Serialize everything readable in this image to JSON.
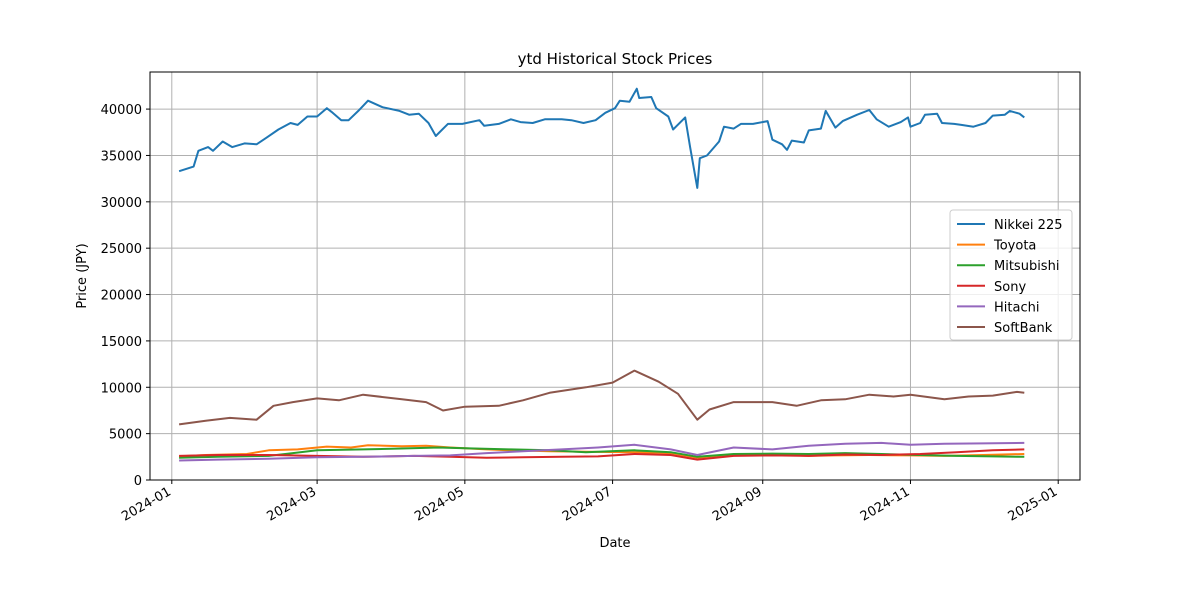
{
  "chart_data": {
    "type": "line",
    "title": "ytd Historical Stock Prices",
    "xlabel": "Date",
    "ylabel": "Price (JPY)",
    "xlim": [
      "2023-12-23",
      "2025-01-10"
    ],
    "ylim": [
      0,
      44000
    ],
    "x_ticks": [
      "2024-01",
      "2024-03",
      "2024-05",
      "2024-07",
      "2024-09",
      "2024-11",
      "2025-01"
    ],
    "y_ticks": [
      0,
      5000,
      10000,
      15000,
      20000,
      25000,
      30000,
      35000,
      40000
    ],
    "grid": true,
    "legend_position": "center-right",
    "series": [
      {
        "name": "Nikkei 225",
        "color": "#1f77b4",
        "points": [
          [
            "2024-01-04",
            33300
          ],
          [
            "2024-01-10",
            33800
          ],
          [
            "2024-01-12",
            35500
          ],
          [
            "2024-01-16",
            35900
          ],
          [
            "2024-01-18",
            35500
          ],
          [
            "2024-01-22",
            36500
          ],
          [
            "2024-01-26",
            35900
          ],
          [
            "2024-01-31",
            36300
          ],
          [
            "2024-02-05",
            36200
          ],
          [
            "2024-02-09",
            36900
          ],
          [
            "2024-02-14",
            37800
          ],
          [
            "2024-02-19",
            38500
          ],
          [
            "2024-02-22",
            38300
          ],
          [
            "2024-02-26",
            39200
          ],
          [
            "2024-03-01",
            39200
          ],
          [
            "2024-03-05",
            40100
          ],
          [
            "2024-03-07",
            39700
          ],
          [
            "2024-03-11",
            38800
          ],
          [
            "2024-03-14",
            38800
          ],
          [
            "2024-03-18",
            39800
          ],
          [
            "2024-03-22",
            40900
          ],
          [
            "2024-03-28",
            40200
          ],
          [
            "2024-04-04",
            39800
          ],
          [
            "2024-04-08",
            39400
          ],
          [
            "2024-04-12",
            39500
          ],
          [
            "2024-04-16",
            38500
          ],
          [
            "2024-04-19",
            37100
          ],
          [
            "2024-04-24",
            38400
          ],
          [
            "2024-04-30",
            38400
          ],
          [
            "2024-05-07",
            38800
          ],
          [
            "2024-05-09",
            38200
          ],
          [
            "2024-05-15",
            38400
          ],
          [
            "2024-05-20",
            38900
          ],
          [
            "2024-05-24",
            38600
          ],
          [
            "2024-05-29",
            38500
          ],
          [
            "2024-06-03",
            38900
          ],
          [
            "2024-06-10",
            38900
          ],
          [
            "2024-06-14",
            38800
          ],
          [
            "2024-06-19",
            38500
          ],
          [
            "2024-06-24",
            38800
          ],
          [
            "2024-06-28",
            39600
          ],
          [
            "2024-07-02",
            40100
          ],
          [
            "2024-07-04",
            40900
          ],
          [
            "2024-07-08",
            40800
          ],
          [
            "2024-07-11",
            42200
          ],
          [
            "2024-07-12",
            41200
          ],
          [
            "2024-07-17",
            41300
          ],
          [
            "2024-07-19",
            40100
          ],
          [
            "2024-07-24",
            39200
          ],
          [
            "2024-07-26",
            37800
          ],
          [
            "2024-07-31",
            39100
          ],
          [
            "2024-08-02",
            35900
          ],
          [
            "2024-08-05",
            31500
          ],
          [
            "2024-08-06",
            34700
          ],
          [
            "2024-08-09",
            35000
          ],
          [
            "2024-08-14",
            36500
          ],
          [
            "2024-08-16",
            38100
          ],
          [
            "2024-08-20",
            37900
          ],
          [
            "2024-08-23",
            38400
          ],
          [
            "2024-08-28",
            38400
          ],
          [
            "2024-09-03",
            38700
          ],
          [
            "2024-09-05",
            36700
          ],
          [
            "2024-09-09",
            36200
          ],
          [
            "2024-09-11",
            35600
          ],
          [
            "2024-09-13",
            36600
          ],
          [
            "2024-09-18",
            36400
          ],
          [
            "2024-09-20",
            37700
          ],
          [
            "2024-09-25",
            37900
          ],
          [
            "2024-09-27",
            39800
          ],
          [
            "2024-10-01",
            38000
          ],
          [
            "2024-10-04",
            38700
          ],
          [
            "2024-10-10",
            39400
          ],
          [
            "2024-10-15",
            39900
          ],
          [
            "2024-10-18",
            38900
          ],
          [
            "2024-10-23",
            38100
          ],
          [
            "2024-10-28",
            38600
          ],
          [
            "2024-10-31",
            39100
          ],
          [
            "2024-11-01",
            38100
          ],
          [
            "2024-11-05",
            38500
          ],
          [
            "2024-11-07",
            39400
          ],
          [
            "2024-11-12",
            39500
          ],
          [
            "2024-11-14",
            38500
          ],
          [
            "2024-11-19",
            38400
          ],
          [
            "2024-11-22",
            38300
          ],
          [
            "2024-11-27",
            38100
          ],
          [
            "2024-12-02",
            38500
          ],
          [
            "2024-12-05",
            39300
          ],
          [
            "2024-12-10",
            39400
          ],
          [
            "2024-12-12",
            39800
          ],
          [
            "2024-12-16",
            39500
          ],
          [
            "2024-12-18",
            39100
          ]
        ]
      },
      {
        "name": "Toyota",
        "color": "#ff7f0e",
        "points": [
          [
            "2024-01-04",
            2550
          ],
          [
            "2024-01-15",
            2700
          ],
          [
            "2024-02-01",
            2800
          ],
          [
            "2024-02-10",
            3200
          ],
          [
            "2024-02-22",
            3300
          ],
          [
            "2024-03-05",
            3600
          ],
          [
            "2024-03-15",
            3500
          ],
          [
            "2024-03-22",
            3750
          ],
          [
            "2024-04-05",
            3650
          ],
          [
            "2024-04-15",
            3700
          ],
          [
            "2024-04-25",
            3500
          ],
          [
            "2024-05-10",
            3300
          ],
          [
            "2024-05-20",
            3200
          ],
          [
            "2024-06-05",
            3100
          ],
          [
            "2024-06-20",
            3050
          ],
          [
            "2024-07-10",
            3000
          ],
          [
            "2024-07-25",
            2900
          ],
          [
            "2024-08-05",
            2400
          ],
          [
            "2024-08-15",
            2650
          ],
          [
            "2024-09-01",
            2800
          ],
          [
            "2024-09-20",
            2600
          ],
          [
            "2024-10-01",
            2650
          ],
          [
            "2024-10-15",
            2700
          ],
          [
            "2024-11-01",
            2650
          ],
          [
            "2024-11-15",
            2600
          ],
          [
            "2024-12-01",
            2700
          ],
          [
            "2024-12-18",
            2800
          ]
        ]
      },
      {
        "name": "Mitsubishi",
        "color": "#2ca02c",
        "points": [
          [
            "2024-01-04",
            2400
          ],
          [
            "2024-01-20",
            2500
          ],
          [
            "2024-02-10",
            2600
          ],
          [
            "2024-02-20",
            2900
          ],
          [
            "2024-03-01",
            3200
          ],
          [
            "2024-03-20",
            3300
          ],
          [
            "2024-04-05",
            3400
          ],
          [
            "2024-04-20",
            3500
          ],
          [
            "2024-05-05",
            3400
          ],
          [
            "2024-05-20",
            3300
          ],
          [
            "2024-06-05",
            3200
          ],
          [
            "2024-06-20",
            3000
          ],
          [
            "2024-07-10",
            3200
          ],
          [
            "2024-07-25",
            3000
          ],
          [
            "2024-08-05",
            2500
          ],
          [
            "2024-08-20",
            2800
          ],
          [
            "2024-09-05",
            2850
          ],
          [
            "2024-09-20",
            2800
          ],
          [
            "2024-10-05",
            2900
          ],
          [
            "2024-10-20",
            2800
          ],
          [
            "2024-11-05",
            2700
          ],
          [
            "2024-11-20",
            2600
          ],
          [
            "2024-12-05",
            2550
          ],
          [
            "2024-12-18",
            2500
          ]
        ]
      },
      {
        "name": "Sony",
        "color": "#d62728",
        "points": [
          [
            "2024-01-04",
            2600
          ],
          [
            "2024-01-20",
            2700
          ],
          [
            "2024-02-10",
            2700
          ],
          [
            "2024-03-01",
            2600
          ],
          [
            "2024-03-20",
            2500
          ],
          [
            "2024-04-10",
            2600
          ],
          [
            "2024-04-25",
            2500
          ],
          [
            "2024-05-10",
            2400
          ],
          [
            "2024-05-25",
            2450
          ],
          [
            "2024-06-10",
            2500
          ],
          [
            "2024-06-25",
            2550
          ],
          [
            "2024-07-10",
            2800
          ],
          [
            "2024-07-25",
            2700
          ],
          [
            "2024-08-05",
            2200
          ],
          [
            "2024-08-20",
            2600
          ],
          [
            "2024-09-05",
            2650
          ],
          [
            "2024-09-20",
            2600
          ],
          [
            "2024-10-05",
            2750
          ],
          [
            "2024-10-20",
            2700
          ],
          [
            "2024-11-05",
            2800
          ],
          [
            "2024-11-20",
            3000
          ],
          [
            "2024-12-05",
            3200
          ],
          [
            "2024-12-18",
            3300
          ]
        ]
      },
      {
        "name": "Hitachi",
        "color": "#9467bd",
        "points": [
          [
            "2024-01-04",
            2100
          ],
          [
            "2024-01-20",
            2200
          ],
          [
            "2024-02-10",
            2300
          ],
          [
            "2024-03-01",
            2450
          ],
          [
            "2024-03-20",
            2500
          ],
          [
            "2024-04-10",
            2600
          ],
          [
            "2024-04-25",
            2650
          ],
          [
            "2024-05-10",
            2900
          ],
          [
            "2024-05-25",
            3100
          ],
          [
            "2024-06-10",
            3300
          ],
          [
            "2024-06-25",
            3500
          ],
          [
            "2024-07-10",
            3800
          ],
          [
            "2024-07-25",
            3300
          ],
          [
            "2024-08-05",
            2700
          ],
          [
            "2024-08-20",
            3500
          ],
          [
            "2024-09-05",
            3300
          ],
          [
            "2024-09-20",
            3700
          ],
          [
            "2024-10-05",
            3900
          ],
          [
            "2024-10-20",
            4000
          ],
          [
            "2024-11-01",
            3800
          ],
          [
            "2024-11-15",
            3900
          ],
          [
            "2024-12-01",
            3950
          ],
          [
            "2024-12-18",
            4000
          ]
        ]
      },
      {
        "name": "SoftBank",
        "color": "#8c564b",
        "points": [
          [
            "2024-01-04",
            6000
          ],
          [
            "2024-01-15",
            6400
          ],
          [
            "2024-01-25",
            6700
          ],
          [
            "2024-02-05",
            6500
          ],
          [
            "2024-02-12",
            8000
          ],
          [
            "2024-02-20",
            8400
          ],
          [
            "2024-03-01",
            8800
          ],
          [
            "2024-03-10",
            8600
          ],
          [
            "2024-03-20",
            9200
          ],
          [
            "2024-04-05",
            8700
          ],
          [
            "2024-04-15",
            8400
          ],
          [
            "2024-04-22",
            7500
          ],
          [
            "2024-05-01",
            7900
          ],
          [
            "2024-05-15",
            8000
          ],
          [
            "2024-05-25",
            8600
          ],
          [
            "2024-06-05",
            9400
          ],
          [
            "2024-06-20",
            10000
          ],
          [
            "2024-07-01",
            10500
          ],
          [
            "2024-07-10",
            11800
          ],
          [
            "2024-07-20",
            10600
          ],
          [
            "2024-07-28",
            9300
          ],
          [
            "2024-08-05",
            6500
          ],
          [
            "2024-08-10",
            7600
          ],
          [
            "2024-08-20",
            8400
          ],
          [
            "2024-09-05",
            8400
          ],
          [
            "2024-09-15",
            8000
          ],
          [
            "2024-09-25",
            8600
          ],
          [
            "2024-10-05",
            8700
          ],
          [
            "2024-10-15",
            9200
          ],
          [
            "2024-10-25",
            9000
          ],
          [
            "2024-11-01",
            9200
          ],
          [
            "2024-11-15",
            8700
          ],
          [
            "2024-11-25",
            9000
          ],
          [
            "2024-12-05",
            9100
          ],
          [
            "2024-12-15",
            9500
          ],
          [
            "2024-12-18",
            9400
          ]
        ]
      }
    ]
  }
}
